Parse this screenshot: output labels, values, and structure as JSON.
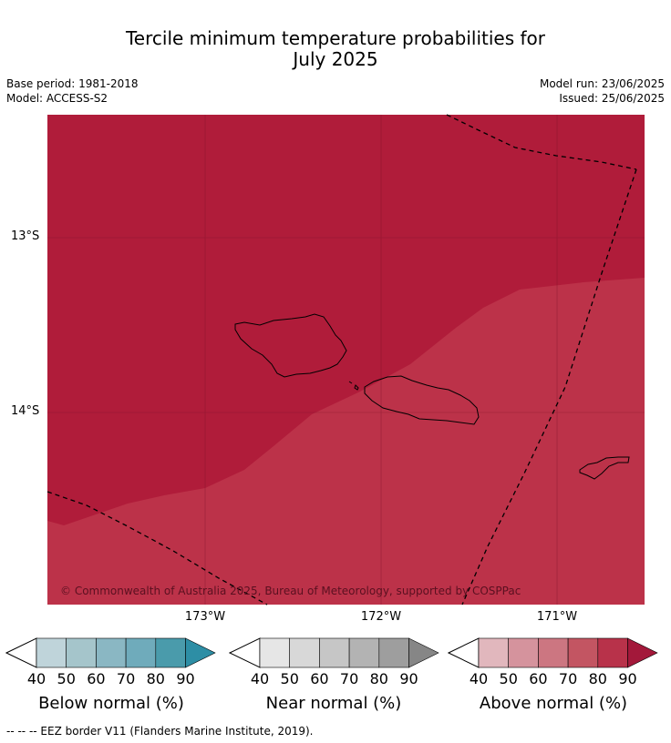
{
  "title_line1": "Tercile minimum temperature probabilities for",
  "title_line2": "July 2025",
  "base_period": "Base period: 1981-2018",
  "model": "Model: ACCESS-S2",
  "model_run": "Model run: 23/06/2025",
  "issued": "Issued: 25/06/2025",
  "lat_labels": [
    "13°S",
    "14°S"
  ],
  "lon_labels": [
    "173°W",
    "172°W",
    "171°W"
  ],
  "copyright": "© Commonwealth of Australia 2025, Bureau of Meteorology, supported by COSPPac",
  "eez_note": "--  --  -- EEZ border V11 (Flanders Marine Institute, 2019).",
  "colorbars": [
    {
      "label": "Below normal (%)",
      "ticks": [
        "40",
        "50",
        "60",
        "70",
        "80",
        "90"
      ],
      "colors": [
        "#bfd4da",
        "#a5c5cb",
        "#8ab7c3",
        "#6fabbb",
        "#4a9bab",
        "#2d8ea5"
      ]
    },
    {
      "label": "Near normal (%)",
      "ticks": [
        "40",
        "50",
        "60",
        "70",
        "80",
        "90"
      ],
      "colors": [
        "#e6e6e6",
        "#d8d8d8",
        "#c6c6c6",
        "#b3b3b3",
        "#9e9e9e",
        "#868686"
      ]
    },
    {
      "label": "Above normal (%)",
      "ticks": [
        "40",
        "50",
        "60",
        "70",
        "80",
        "90"
      ],
      "colors": [
        "#e1b7bd",
        "#d5939d",
        "#cc7681",
        "#c35562",
        "#b8324a",
        "#a3183a"
      ]
    }
  ],
  "map_colors": {
    "above_90": "#b01c3a",
    "above_80": "#bc3249"
  }
}
